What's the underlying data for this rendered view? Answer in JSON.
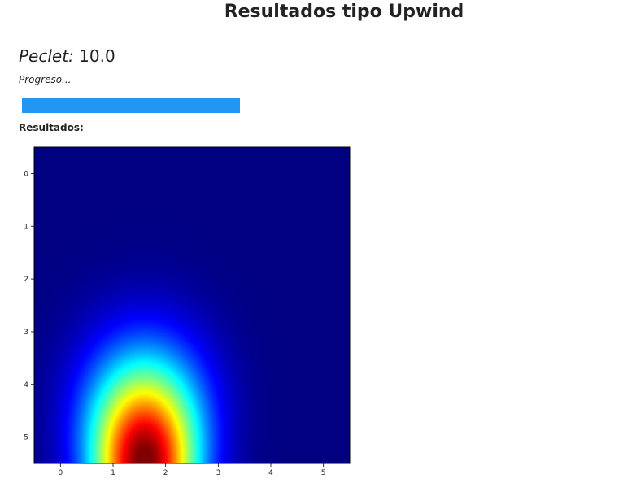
{
  "title": "Resultados tipo Upwind",
  "peclet": {
    "label": "Peclet:",
    "value": "10.0"
  },
  "progress": {
    "label": "Progreso...",
    "fraction": 1.0,
    "color": "#2196f3"
  },
  "results_label": "Resultados:",
  "chart_data": {
    "type": "heatmap",
    "colormap": "jet",
    "x_ticks": [
      "0",
      "1",
      "2",
      "3",
      "4",
      "5"
    ],
    "y_ticks": [
      "0",
      "1",
      "2",
      "3",
      "4",
      "5"
    ],
    "xlim": [
      -0.5,
      5.5
    ],
    "ylim": [
      5.5,
      -0.5
    ],
    "peak": {
      "x": 1.6,
      "y": 5.5
    },
    "title": "",
    "xlabel": "",
    "ylabel": ""
  }
}
